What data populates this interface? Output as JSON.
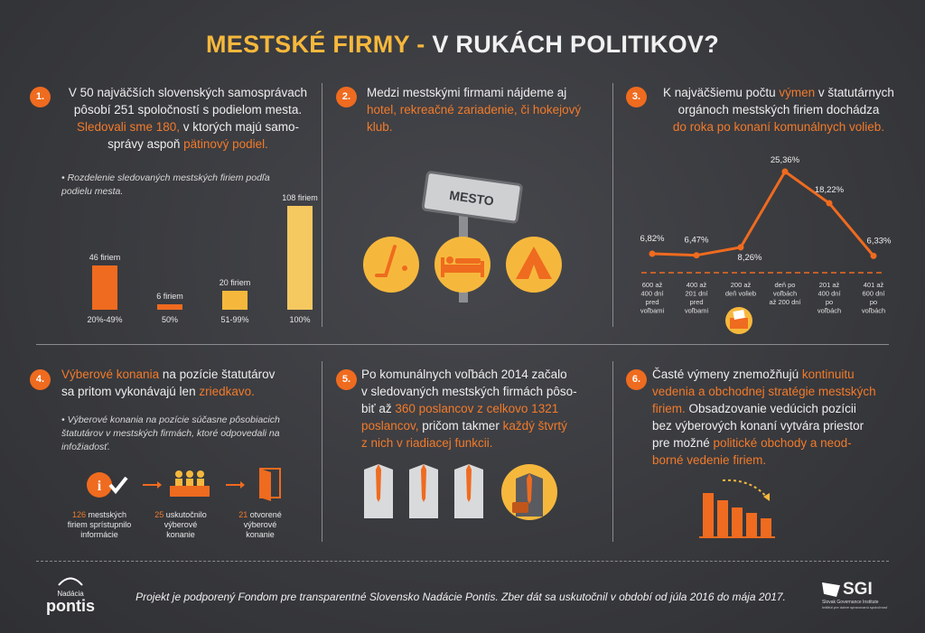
{
  "title": {
    "part1": "MESTSKÉ FIRMY",
    "dash": " - ",
    "part2": "V RUKÁCH POLITIKOV?"
  },
  "s1": {
    "num": "1.",
    "l1": "V 50 najväčších slovenských samosprávach",
    "l2": "pôsobí 251 spoločností s podielom mesta.",
    "l3a": "Sledovali sme 180,",
    "l3b": " v ktorých majú samo-",
    "l4a": "správy aspoň ",
    "l4b": "pätinový podiel.",
    "note1": "• Rozdelenie sledovaných mestských firiem podľa",
    "note2": "podielu mesta.",
    "bars": [
      {
        "label": "46 firiem",
        "value": 46,
        "category": "20%-49%",
        "color": "#ef6b1f"
      },
      {
        "label": "6 firiem",
        "value": 6,
        "category": "50%",
        "color": "#ef6b1f"
      },
      {
        "label": "20 firiem",
        "value": 20,
        "category": "51-99%",
        "color": "#f6b83c"
      },
      {
        "label": "108 firiem",
        "value": 108,
        "category": "100%",
        "color": "#f6c860"
      }
    ]
  },
  "s2": {
    "num": "2.",
    "l1": "Medzi mestskými firmami nájdeme aj",
    "l2": "hotel, rekreačné zariadenie, či hokejový",
    "l3": "klub.",
    "sign": "MESTO"
  },
  "s3": {
    "num": "3.",
    "l1a": "K najväčšiemu počtu ",
    "l1b": "výmen",
    "l1c": " v štatutárnych",
    "l2": "orgánoch mestských firiem dochádza",
    "l3": "do roka po konaní komunálnych volieb.",
    "points": [
      {
        "value": 6.82,
        "label": "6,82%",
        "cat": [
          "600 až",
          "400 dní",
          "pred",
          "voľbami"
        ]
      },
      {
        "value": 6.47,
        "label": "6,47%",
        "cat": [
          "400 až",
          "201 dní",
          "pred",
          "voľbami"
        ]
      },
      {
        "value": 8.26,
        "label": "8,26%",
        "cat": [
          "200 až",
          "deň volieb"
        ]
      },
      {
        "value": 25.36,
        "label": "25,36%",
        "cat": [
          "deň po",
          "voľbách",
          "až 200 dní"
        ]
      },
      {
        "value": 18.22,
        "label": "18,22%",
        "cat": [
          "201 až",
          "400 dní",
          "po",
          "voľbách"
        ]
      },
      {
        "value": 6.33,
        "label": "6,33%",
        "cat": [
          "401 až",
          "600 dní",
          "po",
          "voľbách"
        ]
      }
    ]
  },
  "s4": {
    "num": "4.",
    "l1a": "Výberové konania",
    "l1b": " na pozície štatutárov",
    "l2a": "sa pritom vykonávajú len ",
    "l2b": "zriedkavo.",
    "note1": "• Výberové konania na pozície súčasne pôsobiacich",
    "note2": "štatutárov v mestských firmách, ktoré odpovedali na",
    "note3": "infožiadosť.",
    "steps": [
      {
        "num": "126",
        "t1": " mestských",
        "t2": "firiem sprístupnilo",
        "t3": "informácie"
      },
      {
        "num": "25",
        "t1": " uskutočnilo",
        "t2": "výberové",
        "t3": "konanie"
      },
      {
        "num": "21",
        "t1": " otvorené",
        "t2": "výberové",
        "t3": "konanie"
      }
    ]
  },
  "s5": {
    "num": "5.",
    "l1": "Po komunálnych voľbách 2014 začalo",
    "l2": "v sledovaných mestských firmách pôso-",
    "l3a": "biť až ",
    "l3b": "360 poslancov z celkovo 1321",
    "l4a": "poslancov,",
    "l4b": " pričom takmer ",
    "l4c": "každý štvrtý",
    "l5": "z nich v riadiacej funkcii."
  },
  "s6": {
    "num": "6.",
    "l1a": "Časté výmeny znemožňujú ",
    "l1b": "kontinuitu",
    "l2": "vedenia a obchodnej stratégie mestských",
    "l3a": "firiem.",
    "l3b": " Obsadzovanie vedúcich pozícii",
    "l4": "bez výberových konaní vytvára priestor",
    "l5a": "pre možné ",
    "l5b": "politické obchody a neod-",
    "l6": "borné vedenie firiem."
  },
  "footer": {
    "text": "Projekt je podporený Fondom pre transparentné Slovensko Nadácie Pontis. Zber dát sa uskutočnil v období od júla 2016 do mája 2017.",
    "logo_small": "Nadácia",
    "logo_big": "pontis",
    "sgi": "SGI",
    "sgi_sub1": "Slovak Governance Institute",
    "sgi_sub2": "Inštitút pre dobre spravovanú spoločnosť"
  },
  "colors": {
    "orange": "#ef6b1f",
    "yellow": "#f6b83c",
    "bg": "#3a3b3f"
  }
}
